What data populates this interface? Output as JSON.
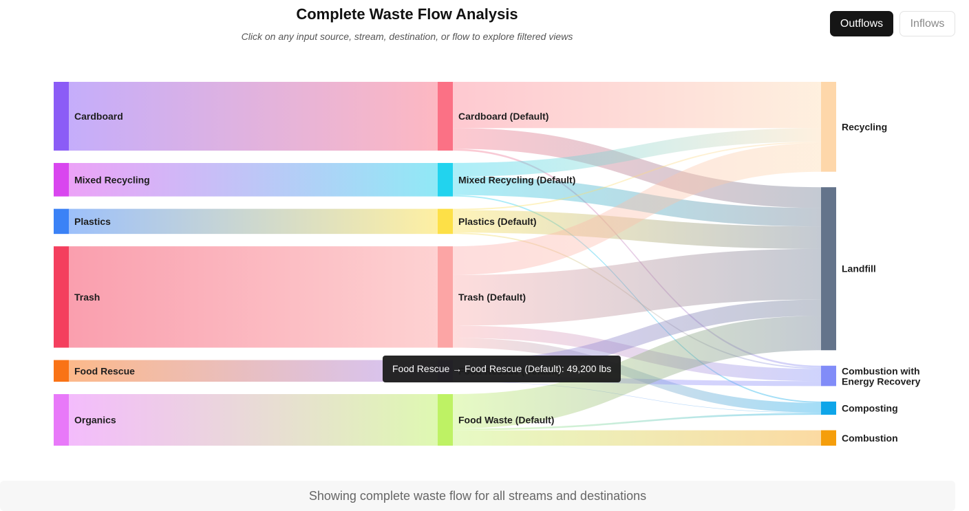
{
  "header": {
    "title": "Complete Waste Flow Analysis",
    "subtitle": "Click on any input source, stream, destination, or flow to explore filtered views"
  },
  "toggle": {
    "outflows_label": "Outflows",
    "inflows_label": "Inflows",
    "active": "Outflows"
  },
  "tooltip": {
    "text": "Food Rescue → Food Rescue (Default): 49,200 lbs"
  },
  "footer": {
    "status_text": "Showing complete waste flow for all streams and destinations"
  },
  "chart_data": {
    "type": "sankey",
    "unit": "lbs",
    "columns": [
      [
        {
          "id": "src_cardboard",
          "label": "Cardboard",
          "color": "#8b5cf6"
        },
        {
          "id": "src_mixed",
          "label": "Mixed Recycling",
          "color": "#d946ef"
        },
        {
          "id": "src_plastics",
          "label": "Plastics",
          "color": "#3b82f6"
        },
        {
          "id": "src_trash",
          "label": "Trash",
          "color": "#f43f5e"
        },
        {
          "id": "src_foodrescue",
          "label": "Food Rescue",
          "color": "#f97316"
        },
        {
          "id": "src_organics",
          "label": "Organics",
          "color": "#e879f9"
        }
      ],
      [
        {
          "id": "st_cardboard",
          "label": "Cardboard (Default)",
          "color": "#fb7185"
        },
        {
          "id": "st_mixed",
          "label": "Mixed Recycling (Default)",
          "color": "#22d3ee"
        },
        {
          "id": "st_plastics",
          "label": "Plastics (Default)",
          "color": "#fde047"
        },
        {
          "id": "st_trash",
          "label": "Trash (Default)",
          "color": "#fca5a5"
        },
        {
          "id": "st_foodrescue",
          "label": "Food Rescue (Default)",
          "color": "#a78bfa"
        },
        {
          "id": "st_foodwaste",
          "label": "Food Waste (Default)",
          "color": "#bef264"
        }
      ],
      [
        {
          "id": "d_recycling",
          "label": "Recycling",
          "color": "#fed7aa"
        },
        {
          "id": "d_landfill",
          "label": "Landfill",
          "color": "#64748b"
        },
        {
          "id": "d_combustion_er",
          "label": "Combustion with Energy Recovery",
          "color": "#818cf8"
        },
        {
          "id": "d_composting",
          "label": "Composting",
          "color": "#0ea5e9"
        },
        {
          "id": "d_combustion",
          "label": "Combustion",
          "color": "#f59e0b"
        }
      ]
    ],
    "links": [
      {
        "source": "src_cardboard",
        "target": "st_cardboard",
        "value": 156000
      },
      {
        "source": "src_mixed",
        "target": "st_mixed",
        "value": 76000
      },
      {
        "source": "src_plastics",
        "target": "st_plastics",
        "value": 57000
      },
      {
        "source": "src_trash",
        "target": "st_trash",
        "value": 230000
      },
      {
        "source": "src_foodrescue",
        "target": "st_foodrescue",
        "value": 49200
      },
      {
        "source": "src_organics",
        "target": "st_foodwaste",
        "value": 117000
      },
      {
        "source": "st_cardboard",
        "target": "d_recycling",
        "value": 105000
      },
      {
        "source": "st_cardboard",
        "target": "d_landfill",
        "value": 47000
      },
      {
        "source": "st_cardboard",
        "target": "d_combustion_er",
        "value": 4000
      },
      {
        "source": "st_mixed",
        "target": "d_recycling",
        "value": 31000
      },
      {
        "source": "st_mixed",
        "target": "d_landfill",
        "value": 42000
      },
      {
        "source": "st_mixed",
        "target": "d_composting",
        "value": 3000
      },
      {
        "source": "st_plastics",
        "target": "d_recycling",
        "value": 3000
      },
      {
        "source": "st_plastics",
        "target": "d_landfill",
        "value": 51000
      },
      {
        "source": "st_plastics",
        "target": "d_combustion_er",
        "value": 3000
      },
      {
        "source": "st_trash",
        "target": "d_recycling",
        "value": 65000
      },
      {
        "source": "st_trash",
        "target": "d_landfill",
        "value": 115000
      },
      {
        "source": "st_trash",
        "target": "d_combustion_er",
        "value": 28000
      },
      {
        "source": "st_trash",
        "target": "d_composting",
        "value": 22000
      },
      {
        "source": "st_foodrescue",
        "target": "d_landfill",
        "value": 37000
      },
      {
        "source": "st_foodrescue",
        "target": "d_combustion_er",
        "value": 11200
      },
      {
        "source": "st_foodrescue",
        "target": "d_composting",
        "value": 1000
      },
      {
        "source": "st_foodwaste",
        "target": "d_landfill",
        "value": 78000
      },
      {
        "source": "st_foodwaste",
        "target": "d_composting",
        "value": 4000
      },
      {
        "source": "st_foodwaste",
        "target": "d_combustion",
        "value": 35000
      }
    ]
  }
}
